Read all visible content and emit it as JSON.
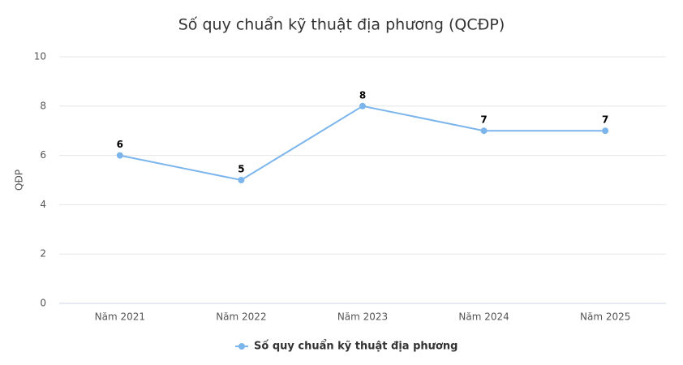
{
  "chart_data": {
    "type": "line",
    "title": "Số quy chuẩn kỹ thuật địa phương (QCĐP)",
    "y_label": "QĐP",
    "categories": [
      "Năm 2021",
      "Năm 2022",
      "Năm 2023",
      "Năm 2024",
      "Năm 2025"
    ],
    "series": [
      {
        "name": "Số quy chuẩn kỹ thuật địa phương",
        "color": "#7cb5ec",
        "values": [
          6,
          5,
          8,
          7,
          7
        ]
      }
    ],
    "ylim": [
      0,
      10
    ],
    "yticks": [
      0,
      2,
      4,
      6,
      8,
      10
    ],
    "grid": true,
    "legend": "bottom"
  }
}
